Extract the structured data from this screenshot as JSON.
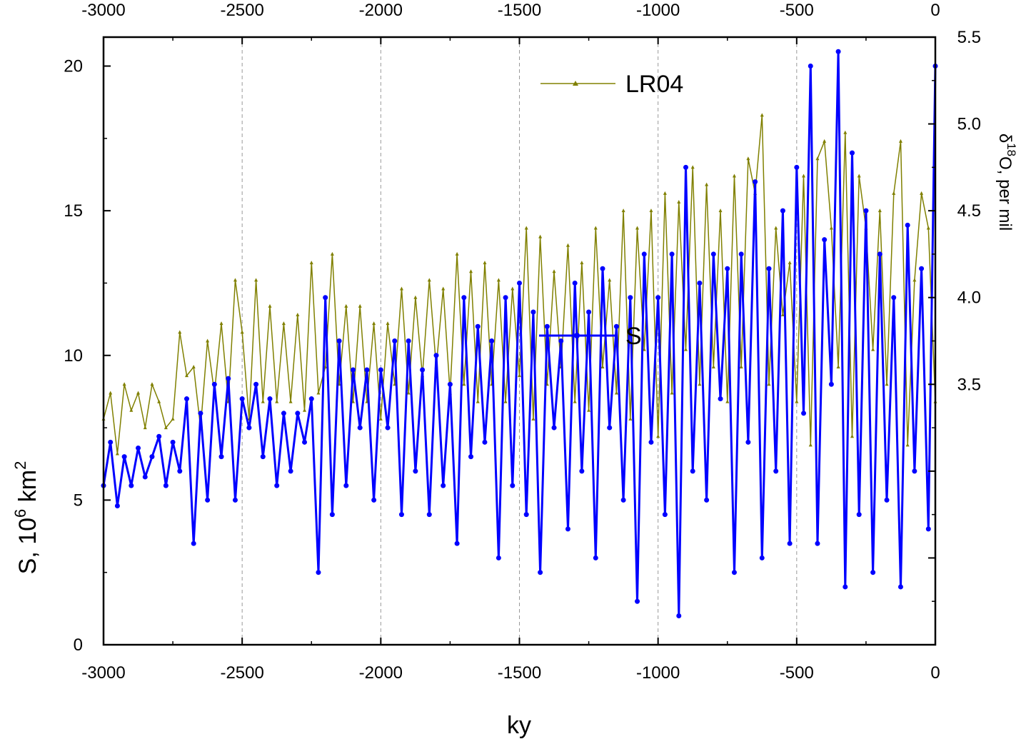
{
  "chart_data": {
    "type": "line",
    "xlabel": "ky",
    "xlim": [
      -3000,
      0
    ],
    "x_ticks": [
      "-3000",
      "-2500",
      "-2000",
      "-1500",
      "-1000",
      "-500",
      "0"
    ],
    "grid": "vertical dashed lines at major x ticks",
    "left_axis": {
      "label_main": "S, 10",
      "label_sup1": "6",
      "label_mid": " km",
      "label_sup2": "2",
      "range": [
        0,
        21
      ],
      "ticks": [
        "0",
        "5",
        "10",
        "15",
        "20"
      ]
    },
    "right_axis": {
      "label_delta": "δ",
      "label_sup": "18",
      "label_rest": "O, per mil",
      "range": [
        2.0,
        5.5
      ],
      "ticks": [
        "3.5",
        "4.0",
        "4.5",
        "5.0",
        "5.5"
      ]
    },
    "legend": {
      "placement": "top-center",
      "entries": [
        "LR04",
        "S"
      ]
    },
    "series": [
      {
        "name": "LR04",
        "axis": "right",
        "color": "#808000",
        "x": [
          -3000,
          -2975,
          -2950,
          -2925,
          -2900,
          -2875,
          -2850,
          -2825,
          -2800,
          -2775,
          -2750,
          -2725,
          -2700,
          -2675,
          -2650,
          -2625,
          -2600,
          -2575,
          -2550,
          -2525,
          -2500,
          -2475,
          -2450,
          -2425,
          -2400,
          -2375,
          -2350,
          -2325,
          -2300,
          -2275,
          -2250,
          -2225,
          -2200,
          -2175,
          -2150,
          -2125,
          -2100,
          -2075,
          -2050,
          -2025,
          -2000,
          -1975,
          -1950,
          -1925,
          -1900,
          -1875,
          -1850,
          -1825,
          -1800,
          -1775,
          -1750,
          -1725,
          -1700,
          -1675,
          -1650,
          -1625,
          -1600,
          -1575,
          -1550,
          -1525,
          -1500,
          -1475,
          -1450,
          -1425,
          -1400,
          -1375,
          -1350,
          -1325,
          -1300,
          -1275,
          -1250,
          -1225,
          -1200,
          -1175,
          -1150,
          -1125,
          -1100,
          -1075,
          -1050,
          -1025,
          -1000,
          -975,
          -950,
          -925,
          -900,
          -875,
          -850,
          -825,
          -800,
          -775,
          -750,
          -725,
          -700,
          -675,
          -650,
          -625,
          -600,
          -575,
          -550,
          -525,
          -500,
          -475,
          -450,
          -425,
          -400,
          -375,
          -350,
          -325,
          -300,
          -275,
          -250,
          -225,
          -200,
          -175,
          -150,
          -125,
          -100,
          -75,
          -50,
          -25,
          0
        ],
        "values": [
          3.3,
          3.45,
          3.1,
          3.5,
          3.35,
          3.45,
          3.25,
          3.5,
          3.4,
          3.25,
          3.3,
          3.8,
          3.55,
          3.6,
          3.25,
          3.75,
          3.45,
          3.85,
          3.4,
          4.1,
          3.8,
          3.3,
          4.1,
          3.4,
          3.95,
          3.4,
          3.85,
          3.4,
          3.9,
          3.35,
          4.2,
          3.45,
          3.6,
          4.25,
          3.5,
          3.95,
          3.4,
          3.95,
          3.4,
          3.85,
          3.3,
          3.85,
          3.5,
          4.05,
          3.45,
          4.0,
          3.55,
          4.1,
          3.6,
          4.05,
          3.45,
          4.25,
          3.5,
          4.15,
          3.4,
          4.2,
          3.5,
          4.1,
          3.4,
          4.05,
          3.55,
          4.4,
          3.3,
          4.35,
          3.5,
          4.15,
          3.6,
          4.3,
          3.4,
          4.2,
          3.35,
          4.4,
          3.6,
          4.1,
          3.45,
          4.5,
          3.3,
          4.4,
          3.7,
          4.5,
          3.2,
          4.6,
          3.45,
          4.55,
          3.7,
          4.75,
          3.5,
          4.65,
          3.6,
          4.5,
          3.4,
          4.7,
          3.6,
          4.8,
          4.6,
          5.05,
          3.5,
          4.4,
          3.9,
          4.2,
          3.4,
          4.7,
          3.15,
          4.8,
          4.9,
          4.4,
          3.6,
          4.95,
          3.2,
          4.7,
          4.4,
          3.7,
          4.5,
          3.5,
          4.6,
          4.9,
          3.15,
          4.1,
          4.6,
          4.4,
          3.4
        ]
      },
      {
        "name": "S",
        "axis": "left",
        "color": "#0000ff",
        "x": [
          -3000,
          -2975,
          -2950,
          -2925,
          -2900,
          -2875,
          -2850,
          -2825,
          -2800,
          -2775,
          -2750,
          -2725,
          -2700,
          -2675,
          -2650,
          -2625,
          -2600,
          -2575,
          -2550,
          -2525,
          -2500,
          -2475,
          -2450,
          -2425,
          -2400,
          -2375,
          -2350,
          -2325,
          -2300,
          -2275,
          -2250,
          -2225,
          -2200,
          -2175,
          -2150,
          -2125,
          -2100,
          -2075,
          -2050,
          -2025,
          -2000,
          -1975,
          -1950,
          -1925,
          -1900,
          -1875,
          -1850,
          -1825,
          -1800,
          -1775,
          -1750,
          -1725,
          -1700,
          -1675,
          -1650,
          -1625,
          -1600,
          -1575,
          -1550,
          -1525,
          -1500,
          -1475,
          -1450,
          -1425,
          -1400,
          -1375,
          -1350,
          -1325,
          -1300,
          -1275,
          -1250,
          -1225,
          -1200,
          -1175,
          -1150,
          -1125,
          -1100,
          -1075,
          -1050,
          -1025,
          -1000,
          -975,
          -950,
          -925,
          -900,
          -875,
          -850,
          -825,
          -800,
          -775,
          -750,
          -725,
          -700,
          -675,
          -650,
          -625,
          -600,
          -575,
          -550,
          -525,
          -500,
          -475,
          -450,
          -425,
          -400,
          -375,
          -350,
          -325,
          -300,
          -275,
          -250,
          -225,
          -200,
          -175,
          -150,
          -125,
          -100,
          -75,
          -50,
          -25,
          0
        ],
        "values": [
          5.5,
          7.0,
          4.8,
          6.5,
          5.5,
          6.8,
          5.8,
          6.5,
          7.2,
          5.5,
          7.0,
          6.0,
          8.5,
          3.5,
          8.0,
          5.0,
          9.0,
          6.5,
          9.2,
          5.0,
          8.5,
          7.5,
          9.0,
          6.5,
          8.5,
          5.5,
          8.0,
          6.0,
          8.0,
          7.0,
          8.5,
          2.5,
          12.0,
          4.5,
          10.5,
          5.5,
          9.5,
          7.5,
          9.5,
          5.0,
          9.5,
          7.5,
          10.5,
          4.5,
          10.5,
          6.0,
          9.5,
          4.5,
          10.0,
          5.5,
          9.0,
          3.5,
          12.0,
          6.5,
          11.0,
          7.0,
          10.5,
          3.0,
          12.0,
          5.5,
          12.5,
          4.5,
          11.5,
          2.5,
          11.0,
          7.5,
          10.5,
          4.0,
          12.5,
          6.0,
          11.5,
          3.0,
          13.0,
          7.5,
          11.0,
          5.0,
          12.0,
          1.5,
          13.5,
          7.0,
          12.0,
          4.5,
          13.5,
          1.0,
          16.5,
          6.0,
          12.5,
          5.0,
          13.5,
          8.5,
          13.0,
          2.5,
          13.5,
          7.0,
          16.0,
          3.0,
          13.0,
          6.0,
          15.0,
          3.5,
          16.5,
          8.0,
          20.0,
          3.5,
          14.0,
          9.0,
          20.5,
          2.0,
          17.0,
          4.5,
          15.0,
          2.5,
          13.5,
          5.0,
          12.0,
          2.0,
          14.5,
          6.0,
          13.0,
          4.0,
          20.0
        ]
      }
    ]
  }
}
